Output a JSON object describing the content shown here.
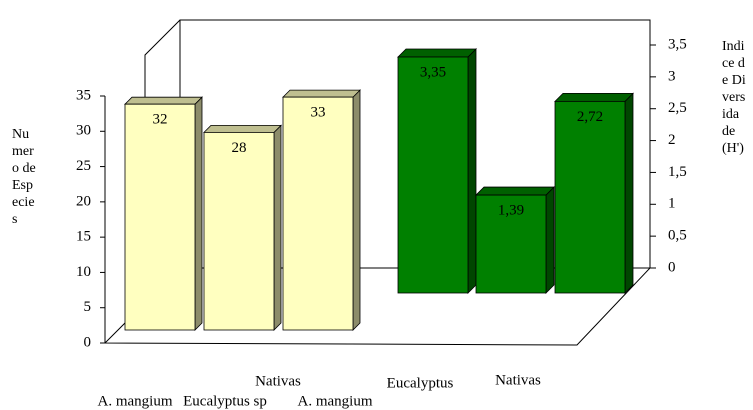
{
  "chart_data": [
    {
      "type": "bar",
      "y_label": "Numero de Especies",
      "categories": [
        "A. mangium",
        "Eucalyptus sp",
        "Nativas"
      ],
      "values": [
        32,
        28,
        33
      ],
      "color": "#ffffc0",
      "ylim": [
        0,
        35
      ],
      "yticks": [
        0,
        5,
        10,
        15,
        20,
        25,
        30,
        35
      ]
    },
    {
      "type": "bar",
      "y_label": "Indice de Diversidade (H')",
      "categories": [
        "A. mangium",
        "Eucalyptus",
        "Nativas"
      ],
      "values": [
        3.35,
        1.39,
        2.72
      ],
      "value_labels": [
        "3,35",
        "1,39",
        "2,72"
      ],
      "color": "#008000",
      "axis": "y2",
      "y2lim": [
        0,
        3.5
      ],
      "y2ticks": [
        0,
        {
          "value": 0.5,
          "label": "0,5"
        },
        1,
        {
          "value": 1.5,
          "label": "1,5"
        },
        2,
        {
          "value": 2.5,
          "label": "2,5"
        },
        3,
        {
          "value": 3.5,
          "label": "3,5"
        }
      ]
    }
  ]
}
